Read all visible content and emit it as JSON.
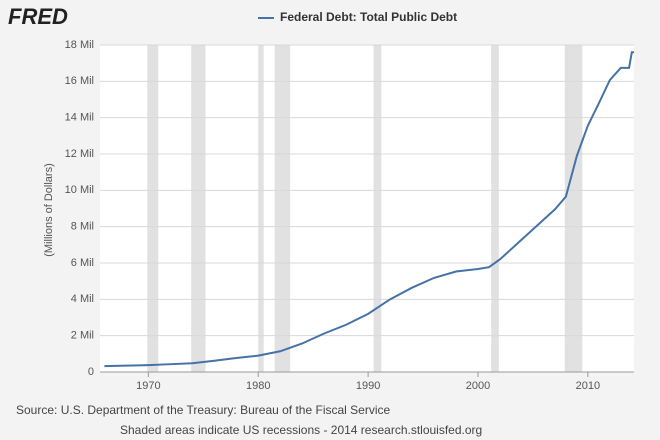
{
  "chart_data": {
    "type": "line",
    "logo": "FRED",
    "y_label": "(Millions of Dollars)",
    "source": "Source: U.S. Department of the Treasury: Bureau of the Fiscal Service",
    "note": "Shaded areas indicate US recessions - 2014 research.stlouisfed.org",
    "x": [
      1966,
      1968,
      1970,
      1972,
      1974,
      1976,
      1978,
      1980,
      1982,
      1984,
      1986,
      1988,
      1990,
      1992,
      1994,
      1996,
      1998,
      2000,
      2001,
      2002,
      2004,
      2006,
      2007,
      2008,
      2009,
      2010,
      2011,
      2012,
      2013,
      2013.75,
      2014,
      2014.2
    ],
    "series": [
      {
        "name": "Federal Debt: Total Public Debt",
        "color": "#4572a7",
        "values": [
          320000,
          350000,
          380000,
          430000,
          480000,
          620000,
          770000,
          900000,
          1140000,
          1570000,
          2120000,
          2600000,
          3200000,
          4000000,
          4640000,
          5180000,
          5530000,
          5670000,
          5770000,
          6200000,
          7300000,
          8400000,
          8950000,
          9650000,
          11900000,
          13560000,
          14790000,
          16070000,
          16740000,
          16740000,
          17600000,
          17600000
        ]
      }
    ],
    "recessions": [
      [
        1969.9,
        1970.9
      ],
      [
        1973.9,
        1975.2
      ],
      [
        1980.0,
        1980.5
      ],
      [
        1981.5,
        1982.9
      ],
      [
        1990.5,
        1991.2
      ],
      [
        2001.2,
        2001.9
      ],
      [
        2007.9,
        2009.5
      ]
    ],
    "recession_color": "#e1e1e1",
    "xlim": [
      1965.6,
      2014.2
    ],
    "xticks": [
      1970,
      1980,
      1990,
      2000,
      2010
    ],
    "ylim": [
      0,
      18000000
    ],
    "yticks": [
      0,
      {
        "value": 2000000,
        "label": "2 Mil"
      },
      {
        "value": 4000000,
        "label": "4 Mil"
      },
      {
        "value": 6000000,
        "label": "6 Mil"
      },
      {
        "value": 8000000,
        "label": "8 Mil"
      },
      {
        "value": 10000000,
        "label": "10 Mil"
      },
      {
        "value": 12000000,
        "label": "12 Mil"
      },
      {
        "value": 14000000,
        "label": "14 Mil"
      },
      {
        "value": 16000000,
        "label": "16 Mil"
      },
      {
        "value": 18000000,
        "label": "18 Mil"
      }
    ],
    "grid": true
  }
}
